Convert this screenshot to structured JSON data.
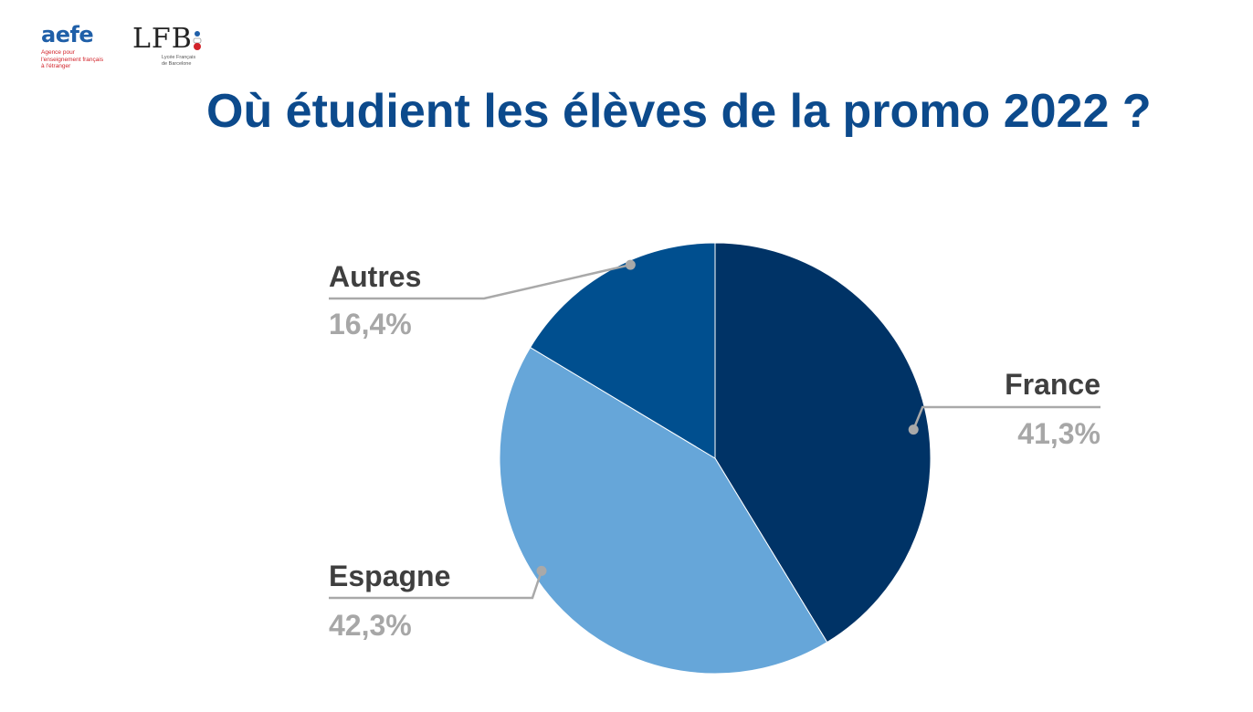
{
  "logos": {
    "aefe": {
      "word": "aefe",
      "subtitle_lines": [
        "Agence pour",
        "l'enseignement français",
        "à l'étranger"
      ]
    },
    "lfb": {
      "word": "LFB",
      "subtitle_lines": [
        "Lycée Français",
        "de Barcelone"
      ]
    }
  },
  "title": "Où étudient les élèves de la promo 2022 ?",
  "chart_data": {
    "type": "pie",
    "title": "",
    "start_angle_deg": 0,
    "direction": "clockwise",
    "slices": [
      {
        "label": "France",
        "value": 41.3,
        "display": "41,3%",
        "color": "#003366",
        "label_side": "right"
      },
      {
        "label": "Espagne",
        "value": 42.3,
        "display": "42,3%",
        "color": "#66a6d9",
        "label_side": "left"
      },
      {
        "label": "Autres",
        "value": 16.4,
        "display": "16,4%",
        "color": "#004f8f",
        "label_side": "left"
      }
    ],
    "leader_color": "#a9a9a9"
  }
}
